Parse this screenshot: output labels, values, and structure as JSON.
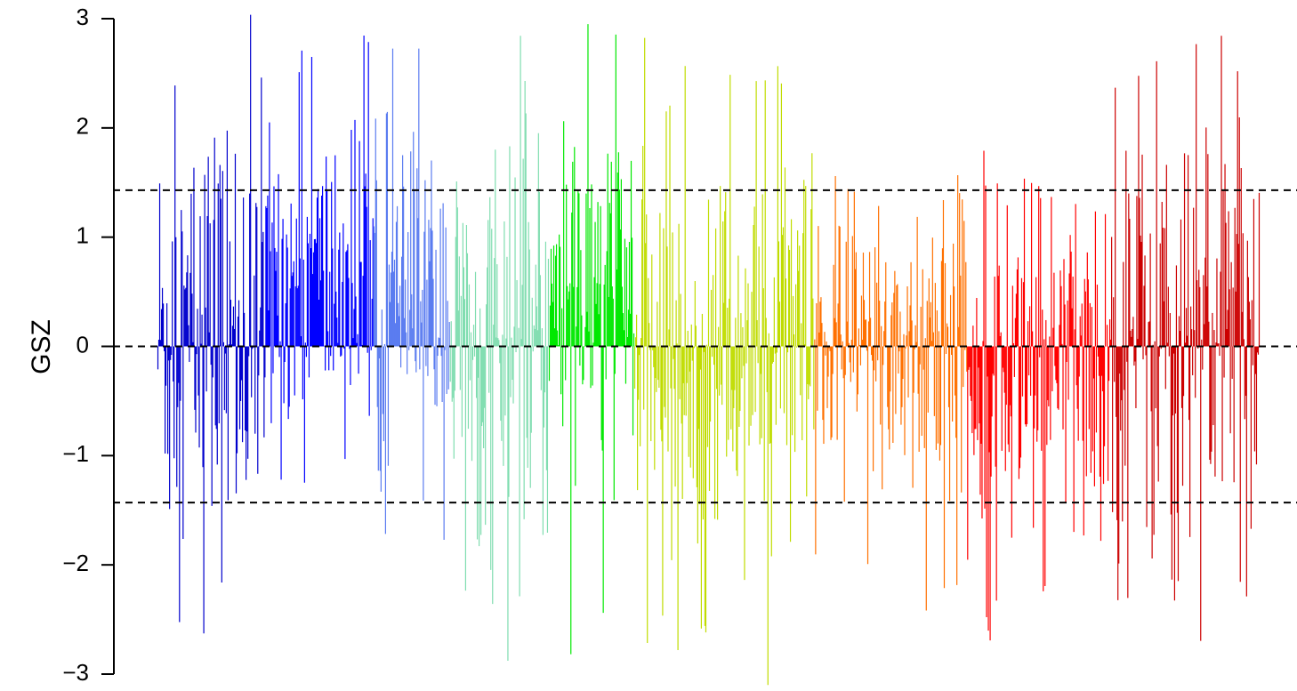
{
  "chart_data": {
    "type": "bar",
    "title": "",
    "xlabel": "",
    "ylabel": "GSZ",
    "ylim": [
      -3,
      3
    ],
    "yticks": [
      3,
      2,
      1,
      0,
      -1,
      -2,
      -3
    ],
    "ytick_labels": [
      "3",
      "2",
      "1",
      "0",
      "−1",
      "−2",
      "−3"
    ],
    "reference_lines": [
      {
        "y": 1.43,
        "style": "dashed",
        "color": "#000000"
      },
      {
        "y": 0,
        "style": "dashed",
        "color": "#000000"
      },
      {
        "y": -1.43,
        "style": "dashed",
        "color": "#000000"
      }
    ],
    "grid": false,
    "legend": "none",
    "series": [
      {
        "color": "#0000CD",
        "count": 120,
        "values_summary": {
          "min": -3.1,
          "max": 3.05,
          "typical_range": [
            -1.5,
            1.7
          ]
        }
      },
      {
        "color": "#0000FF",
        "count": 120,
        "values_summary": {
          "min": -1.65,
          "max": 3.2,
          "typical_range": [
            -0.6,
            1.8
          ]
        }
      },
      {
        "color": "#5B7CF0",
        "count": 85,
        "values_summary": {
          "min": -2.2,
          "max": 2.8,
          "typical_range": [
            -0.8,
            1.6
          ]
        }
      },
      {
        "color": "#80DDB0",
        "count": 110,
        "values_summary": {
          "min": -2.9,
          "max": 3.05,
          "typical_range": [
            -1.5,
            1.4
          ]
        }
      },
      {
        "color": "#00E800",
        "count": 95,
        "values_summary": {
          "min": -2.95,
          "max": 2.95,
          "typical_range": [
            -0.9,
            1.8
          ]
        }
      },
      {
        "color": "#C0DC00",
        "count": 200,
        "values_summary": {
          "min": -3.1,
          "max": 2.9,
          "typical_range": [
            -1.7,
            1.4
          ]
        }
      },
      {
        "color": "#FF7000",
        "count": 170,
        "values_summary": {
          "min": -2.45,
          "max": 2.05,
          "typical_range": [
            -1.2,
            1.2
          ]
        }
      },
      {
        "color": "#FF0000",
        "count": 160,
        "values_summary": {
          "min": -2.9,
          "max": 1.8,
          "typical_range": [
            -1.5,
            1.1
          ]
        }
      },
      {
        "color": "#CC0000",
        "count": 165,
        "values_summary": {
          "min": -2.7,
          "max": 3.15,
          "typical_range": [
            -1.6,
            2.0
          ]
        }
      }
    ]
  }
}
